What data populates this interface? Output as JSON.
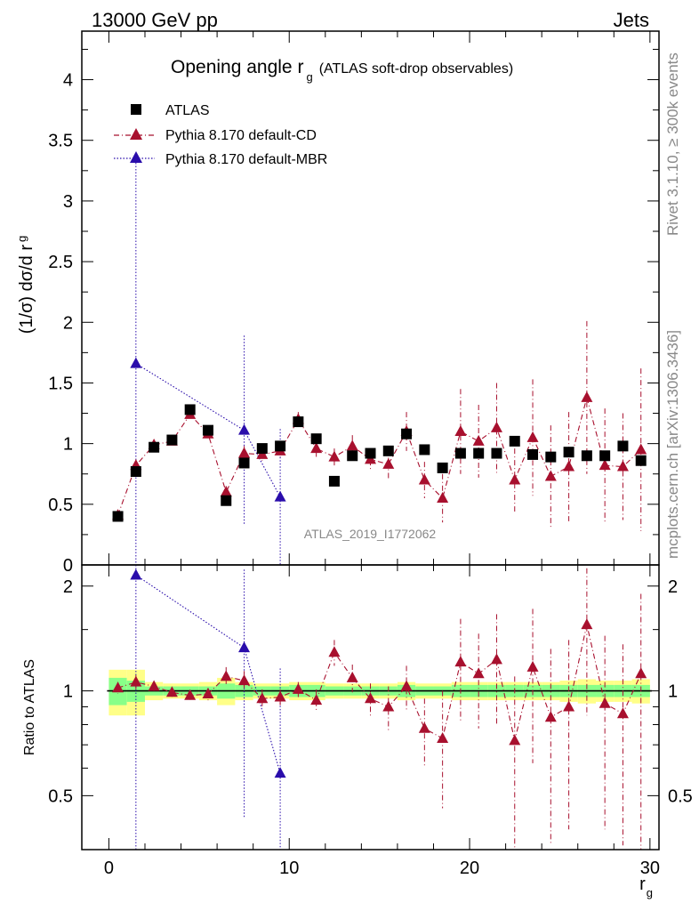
{
  "header": {
    "left": "13000 GeV pp",
    "right": "Jets"
  },
  "main": {
    "title_main": "Opening angle r",
    "title_sub": "g",
    "title_paren": "(ATLAS soft-drop observables)",
    "ylabel_main": "(1/σ) dσ/d r",
    "ylabel_sub": "g",
    "watermark": "ATLAS_2019_I1772062"
  },
  "ratio": {
    "ylabel": "Ratio to ATLAS"
  },
  "xaxis": {
    "label_main": "r",
    "label_sub": "g"
  },
  "side": {
    "rivet": "Rivet 3.1.10, ≥ 300k events",
    "mcplots": "mcplots.cern.ch [arXiv:1306.3436]"
  },
  "legend": [
    {
      "label": "ATLAS"
    },
    {
      "label": "Pythia 8.170 default-CD"
    },
    {
      "label": "Pythia 8.170 default-MBR"
    }
  ],
  "colors": {
    "data": "#000000",
    "cd": "#a8102e",
    "mbr": "#2a0dab",
    "band_yellow": "#ffff88",
    "band_green": "#88ff88"
  },
  "chart_data": [
    {
      "type": "scatter",
      "panel": "main",
      "xlim": [
        -1.5,
        30.5
      ],
      "ylim": [
        0,
        4.4
      ],
      "yticks": [
        "0",
        "0.5",
        "1",
        "1.5",
        "2",
        "2.5",
        "3",
        "3.5",
        "4"
      ],
      "x": [
        0.5,
        1.5,
        2.5,
        3.5,
        4.5,
        5.5,
        6.5,
        7.5,
        8.5,
        9.5,
        10.5,
        11.5,
        12.5,
        13.5,
        14.5,
        15.5,
        16.5,
        17.5,
        18.5,
        19.5,
        20.5,
        21.5,
        22.5,
        23.5,
        24.5,
        25.5,
        26.5,
        27.5,
        28.5,
        29.5
      ],
      "series": [
        {
          "name": "ATLAS",
          "values": [
            0.4,
            0.77,
            0.97,
            1.03,
            1.28,
            1.11,
            0.53,
            0.84,
            0.96,
            0.98,
            1.18,
            1.04,
            0.69,
            0.9,
            0.92,
            0.94,
            1.08,
            0.95,
            0.8,
            0.92,
            0.92,
            0.92,
            1.02,
            0.91,
            0.89,
            0.93,
            0.9,
            0.9,
            0.98,
            0.86
          ],
          "err": [
            0.03,
            0.04,
            0.03,
            0.03,
            0.04,
            0.04,
            0.03,
            0.04,
            0.03,
            0.03,
            0.04,
            0.04,
            0.03,
            0.03,
            0.03,
            0.03,
            0.04,
            0.03,
            0.03,
            0.04,
            0.04,
            0.04,
            0.04,
            0.04,
            0.04,
            0.04,
            0.04,
            0.04,
            0.04,
            0.04
          ]
        },
        {
          "name": "Pythia 8.170 default-CD",
          "values": [
            0.41,
            0.82,
            0.99,
            1.02,
            1.24,
            1.08,
            0.6,
            0.92,
            0.91,
            0.94,
            1.2,
            0.96,
            0.89,
            0.98,
            0.87,
            0.83,
            1.1,
            0.7,
            0.55,
            1.1,
            1.02,
            1.13,
            0.7,
            1.05,
            0.73,
            0.81,
            1.38,
            0.82,
            0.81,
            0.95
          ],
          "err": [
            0.02,
            0.05,
            0.03,
            0.03,
            0.03,
            0.04,
            0.05,
            0.06,
            0.05,
            0.05,
            0.06,
            0.07,
            0.07,
            0.09,
            0.09,
            0.12,
            0.16,
            0.15,
            0.2,
            0.35,
            0.3,
            0.37,
            0.26,
            0.48,
            0.42,
            0.45,
            0.63,
            0.47,
            0.44,
            0.67
          ]
        },
        {
          "name": "Pythia 8.170 default-MBR",
          "x": [
            1.5,
            7.5,
            9.5
          ],
          "values": [
            1.66,
            1.11,
            0.56
          ],
          "err": [
            1.68,
            0.78,
            0.56
          ]
        }
      ]
    },
    {
      "type": "scatter",
      "panel": "ratio",
      "xlim": [
        -1.5,
        30.5
      ],
      "ylim": [
        0.35,
        2.3
      ],
      "yticks": [
        "0.5",
        "1",
        "2"
      ],
      "xticks": [
        "0",
        "10",
        "20",
        "30"
      ],
      "x": [
        0.5,
        1.5,
        2.5,
        3.5,
        4.5,
        5.5,
        6.5,
        7.5,
        8.5,
        9.5,
        10.5,
        11.5,
        12.5,
        13.5,
        14.5,
        15.5,
        16.5,
        17.5,
        18.5,
        19.5,
        20.5,
        21.5,
        22.5,
        23.5,
        24.5,
        25.5,
        26.5,
        27.5,
        28.5,
        29.5
      ],
      "band_yellow": [
        0.15,
        0.15,
        0.06,
        0.05,
        0.05,
        0.06,
        0.09,
        0.06,
        0.05,
        0.05,
        0.06,
        0.06,
        0.05,
        0.05,
        0.05,
        0.05,
        0.06,
        0.05,
        0.05,
        0.06,
        0.06,
        0.06,
        0.06,
        0.06,
        0.06,
        0.07,
        0.08,
        0.07,
        0.07,
        0.08
      ],
      "band_green": [
        0.09,
        0.07,
        0.03,
        0.03,
        0.03,
        0.03,
        0.05,
        0.04,
        0.03,
        0.03,
        0.04,
        0.04,
        0.03,
        0.03,
        0.03,
        0.03,
        0.04,
        0.03,
        0.03,
        0.04,
        0.04,
        0.04,
        0.04,
        0.04,
        0.04,
        0.04,
        0.04,
        0.04,
        0.04,
        0.04
      ],
      "series": [
        {
          "name": "Pythia 8.170 default-CD",
          "values": [
            1.02,
            1.06,
            1.03,
            0.99,
            0.97,
            0.98,
            1.1,
            1.07,
            0.95,
            0.96,
            1.01,
            0.94,
            1.29,
            1.09,
            0.95,
            0.9,
            1.03,
            0.78,
            0.73,
            1.21,
            1.12,
            1.23,
            0.72,
            1.17,
            0.84,
            0.9,
            1.55,
            0.92,
            0.86,
            1.12
          ],
          "err": [
            0.04,
            0.05,
            0.03,
            0.03,
            0.03,
            0.04,
            0.07,
            0.07,
            0.06,
            0.05,
            0.05,
            0.07,
            0.11,
            0.1,
            0.1,
            0.13,
            0.15,
            0.17,
            0.27,
            0.4,
            0.34,
            0.43,
            0.38,
            0.55,
            0.48,
            0.5,
            0.7,
            0.52,
            0.5,
            0.78
          ]
        },
        {
          "name": "Pythia 8.170 default-MBR",
          "x": [
            1.5,
            7.5,
            9.5
          ],
          "values": [
            2.15,
            1.33,
            0.58
          ],
          "err": [
            1.9,
            0.9,
            0.58
          ]
        }
      ]
    }
  ]
}
